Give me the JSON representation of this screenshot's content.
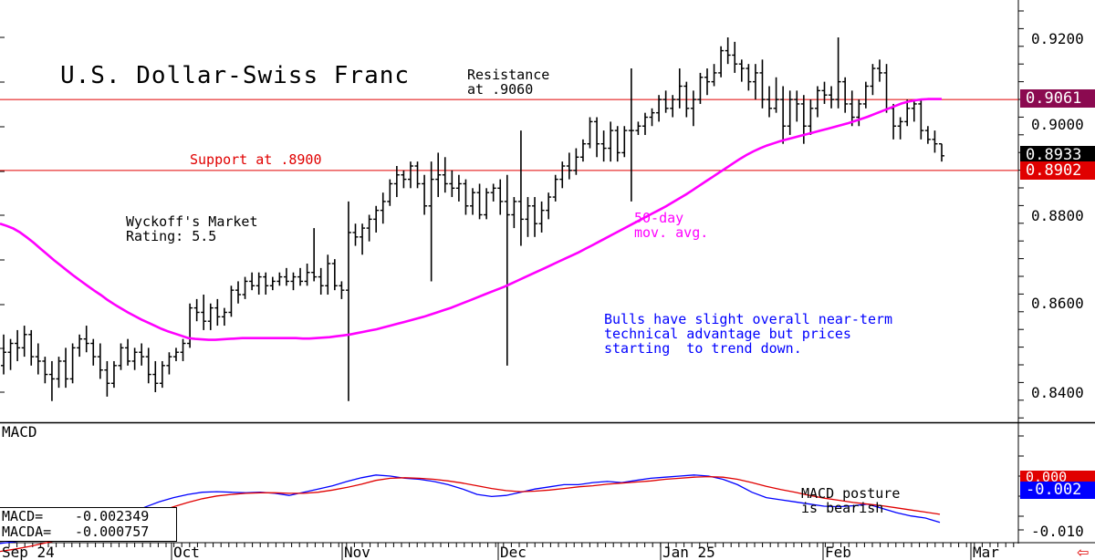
{
  "chart_data": [
    {
      "type": "ohlc",
      "title": "U.S. Dollar-Swiss Franc",
      "y_ticks": [
        "0.9200",
        "0.9000",
        "0.8800",
        "0.8600",
        "0.8400"
      ],
      "ylim": [
        0.837,
        0.928
      ],
      "x_labels": [
        "Sep 24",
        "Oct",
        "Nov",
        "Dec",
        "Jan 25",
        "Feb",
        "Mar"
      ],
      "grid": false,
      "bars": [
        [
          0.846,
          0.853,
          0.844,
          0.849
        ],
        [
          0.849,
          0.852,
          0.845,
          0.851
        ],
        [
          0.851,
          0.854,
          0.847,
          0.85
        ],
        [
          0.85,
          0.855,
          0.848,
          0.853
        ],
        [
          0.853,
          0.854,
          0.846,
          0.848
        ],
        [
          0.848,
          0.851,
          0.844,
          0.847
        ],
        [
          0.847,
          0.848,
          0.842,
          0.844
        ],
        [
          0.844,
          0.847,
          0.838,
          0.843
        ],
        [
          0.843,
          0.848,
          0.841,
          0.847
        ],
        [
          0.847,
          0.85,
          0.841,
          0.843
        ],
        [
          0.843,
          0.851,
          0.842,
          0.85
        ],
        [
          0.85,
          0.853,
          0.848,
          0.852
        ],
        [
          0.852,
          0.855,
          0.849,
          0.851
        ],
        [
          0.851,
          0.852,
          0.846,
          0.848
        ],
        [
          0.848,
          0.851,
          0.843,
          0.845
        ],
        [
          0.845,
          0.847,
          0.839,
          0.842
        ],
        [
          0.842,
          0.847,
          0.841,
          0.846
        ],
        [
          0.846,
          0.851,
          0.845,
          0.85
        ],
        [
          0.85,
          0.852,
          0.846,
          0.847
        ],
        [
          0.847,
          0.85,
          0.845,
          0.849
        ],
        [
          0.849,
          0.851,
          0.846,
          0.848
        ],
        [
          0.848,
          0.85,
          0.842,
          0.844
        ],
        [
          0.844,
          0.847,
          0.84,
          0.842
        ],
        [
          0.842,
          0.847,
          0.841,
          0.846
        ],
        [
          0.846,
          0.849,
          0.844,
          0.848
        ],
        [
          0.848,
          0.85,
          0.847,
          0.849
        ],
        [
          0.849,
          0.852,
          0.847,
          0.851
        ],
        [
          0.851,
          0.86,
          0.85,
          0.859
        ],
        [
          0.859,
          0.861,
          0.856,
          0.858
        ],
        [
          0.858,
          0.862,
          0.854,
          0.856
        ],
        [
          0.856,
          0.86,
          0.854,
          0.859
        ],
        [
          0.859,
          0.861,
          0.855,
          0.857
        ],
        [
          0.857,
          0.859,
          0.855,
          0.858
        ],
        [
          0.858,
          0.864,
          0.857,
          0.863
        ],
        [
          0.863,
          0.865,
          0.86,
          0.862
        ],
        [
          0.862,
          0.866,
          0.861,
          0.865
        ],
        [
          0.865,
          0.867,
          0.863,
          0.864
        ],
        [
          0.864,
          0.867,
          0.862,
          0.866
        ],
        [
          0.866,
          0.867,
          0.862,
          0.864
        ],
        [
          0.864,
          0.866,
          0.863,
          0.865
        ],
        [
          0.865,
          0.867,
          0.864,
          0.866
        ],
        [
          0.866,
          0.868,
          0.864,
          0.865
        ],
        [
          0.865,
          0.867,
          0.863,
          0.866
        ],
        [
          0.866,
          0.868,
          0.864,
          0.865
        ],
        [
          0.865,
          0.869,
          0.864,
          0.867
        ],
        [
          0.867,
          0.877,
          0.865,
          0.866
        ],
        [
          0.866,
          0.868,
          0.862,
          0.864
        ],
        [
          0.864,
          0.871,
          0.862,
          0.869
        ],
        [
          0.869,
          0.87,
          0.863,
          0.864
        ],
        [
          0.864,
          0.865,
          0.861,
          0.863
        ],
        [
          0.863,
          0.883,
          0.838,
          0.876
        ],
        [
          0.876,
          0.878,
          0.873,
          0.875
        ],
        [
          0.875,
          0.878,
          0.871,
          0.877
        ],
        [
          0.877,
          0.88,
          0.874,
          0.879
        ],
        [
          0.879,
          0.882,
          0.876,
          0.881
        ],
        [
          0.881,
          0.885,
          0.878,
          0.883
        ],
        [
          0.883,
          0.888,
          0.882,
          0.887
        ],
        [
          0.887,
          0.891,
          0.884,
          0.889
        ],
        [
          0.889,
          0.89,
          0.886,
          0.888
        ],
        [
          0.888,
          0.892,
          0.886,
          0.891
        ],
        [
          0.891,
          0.892,
          0.886,
          0.887
        ],
        [
          0.887,
          0.889,
          0.88,
          0.882
        ],
        [
          0.882,
          0.892,
          0.865,
          0.888
        ],
        [
          0.888,
          0.894,
          0.884,
          0.889
        ],
        [
          0.889,
          0.893,
          0.885,
          0.887
        ],
        [
          0.887,
          0.89,
          0.884,
          0.886
        ],
        [
          0.886,
          0.889,
          0.883,
          0.887
        ],
        [
          0.887,
          0.888,
          0.88,
          0.882
        ],
        [
          0.882,
          0.886,
          0.88,
          0.885
        ],
        [
          0.885,
          0.887,
          0.879,
          0.88
        ],
        [
          0.88,
          0.886,
          0.879,
          0.885
        ],
        [
          0.885,
          0.887,
          0.883,
          0.886
        ],
        [
          0.886,
          0.888,
          0.88,
          0.883
        ],
        [
          0.883,
          0.889,
          0.846,
          0.88
        ],
        [
          0.88,
          0.884,
          0.877,
          0.883
        ],
        [
          0.883,
          0.899,
          0.873,
          0.879
        ],
        [
          0.879,
          0.884,
          0.875,
          0.882
        ],
        [
          0.882,
          0.884,
          0.875,
          0.878
        ],
        [
          0.878,
          0.883,
          0.876,
          0.881
        ],
        [
          0.881,
          0.885,
          0.879,
          0.884
        ],
        [
          0.884,
          0.889,
          0.883,
          0.888
        ],
        [
          0.888,
          0.892,
          0.886,
          0.891
        ],
        [
          0.891,
          0.894,
          0.888,
          0.89
        ],
        [
          0.89,
          0.895,
          0.889,
          0.893
        ],
        [
          0.893,
          0.897,
          0.892,
          0.896
        ],
        [
          0.896,
          0.902,
          0.895,
          0.901
        ],
        [
          0.901,
          0.902,
          0.893,
          0.896
        ],
        [
          0.896,
          0.899,
          0.892,
          0.895
        ],
        [
          0.895,
          0.901,
          0.892,
          0.899
        ],
        [
          0.899,
          0.9,
          0.892,
          0.894
        ],
        [
          0.894,
          0.9,
          0.893,
          0.899
        ],
        [
          0.899,
          0.913,
          0.883,
          0.899
        ],
        [
          0.899,
          0.901,
          0.898,
          0.9
        ],
        [
          0.9,
          0.903,
          0.898,
          0.902
        ],
        [
          0.902,
          0.904,
          0.9,
          0.903
        ],
        [
          0.903,
          0.907,
          0.901,
          0.906
        ],
        [
          0.906,
          0.908,
          0.903,
          0.904
        ],
        [
          0.904,
          0.907,
          0.902,
          0.906
        ],
        [
          0.906,
          0.913,
          0.904,
          0.909
        ],
        [
          0.909,
          0.91,
          0.902,
          0.904
        ],
        [
          0.904,
          0.908,
          0.9,
          0.906
        ],
        [
          0.906,
          0.912,
          0.905,
          0.911
        ],
        [
          0.911,
          0.913,
          0.907,
          0.91
        ],
        [
          0.91,
          0.914,
          0.909,
          0.912
        ],
        [
          0.912,
          0.918,
          0.911,
          0.917
        ],
        [
          0.917,
          0.92,
          0.914,
          0.916
        ],
        [
          0.916,
          0.919,
          0.912,
          0.914
        ],
        [
          0.914,
          0.915,
          0.91,
          0.913
        ],
        [
          0.913,
          0.914,
          0.908,
          0.91
        ],
        [
          0.91,
          0.914,
          0.906,
          0.912
        ],
        [
          0.912,
          0.915,
          0.904,
          0.906
        ],
        [
          0.906,
          0.909,
          0.902,
          0.904
        ],
        [
          0.904,
          0.911,
          0.903,
          0.906
        ],
        [
          0.906,
          0.909,
          0.896,
          0.9
        ],
        [
          0.9,
          0.908,
          0.898,
          0.906
        ],
        [
          0.906,
          0.908,
          0.901,
          0.905
        ],
        [
          0.905,
          0.907,
          0.896,
          0.9
        ],
        [
          0.9,
          0.906,
          0.898,
          0.904
        ],
        [
          0.904,
          0.909,
          0.902,
          0.908
        ],
        [
          0.908,
          0.91,
          0.905,
          0.907
        ],
        [
          0.907,
          0.909,
          0.904,
          0.906
        ],
        [
          0.906,
          0.92,
          0.904,
          0.91
        ],
        [
          0.91,
          0.911,
          0.903,
          0.905
        ],
        [
          0.905,
          0.908,
          0.9,
          0.902
        ],
        [
          0.902,
          0.906,
          0.9,
          0.905
        ],
        [
          0.905,
          0.91,
          0.904,
          0.909
        ],
        [
          0.909,
          0.914,
          0.907,
          0.913
        ],
        [
          0.913,
          0.915,
          0.91,
          0.912
        ],
        [
          0.912,
          0.914,
          0.903,
          0.904
        ],
        [
          0.904,
          0.905,
          0.897,
          0.9
        ],
        [
          0.9,
          0.902,
          0.897,
          0.901
        ],
        [
          0.901,
          0.906,
          0.9,
          0.904
        ],
        [
          0.904,
          0.906,
          0.901,
          0.905
        ],
        [
          0.905,
          0.906,
          0.897,
          0.899
        ],
        [
          0.899,
          0.9,
          0.896,
          0.897
        ],
        [
          0.897,
          0.899,
          0.894,
          0.896
        ],
        [
          0.896,
          0.896,
          0.892,
          0.8933
        ]
      ],
      "moving_average": {
        "name": "50-day mov. avg.",
        "color": "#ff00ff",
        "values": [
          0.878,
          0.8775,
          0.8769,
          0.876,
          0.8749,
          0.8737,
          0.8724,
          0.8711,
          0.8698,
          0.8686,
          0.8674,
          0.8662,
          0.8651,
          0.864,
          0.8629,
          0.8619,
          0.8608,
          0.8598,
          0.8589,
          0.858,
          0.8572,
          0.8564,
          0.8557,
          0.855,
          0.8543,
          0.8537,
          0.8532,
          0.8527,
          0.8522,
          0.852,
          0.8519,
          0.8518,
          0.8518,
          0.8519,
          0.852,
          0.8521,
          0.8522,
          0.8522,
          0.8522,
          0.8522,
          0.8522,
          0.8522,
          0.8522,
          0.8522,
          0.8522,
          0.8521,
          0.8521,
          0.8522,
          0.8523,
          0.8524,
          0.8526,
          0.8528,
          0.853,
          0.8533,
          0.8536,
          0.8539,
          0.8542,
          0.8546,
          0.855,
          0.8554,
          0.8558,
          0.8562,
          0.8566,
          0.857,
          0.8575,
          0.858,
          0.8585,
          0.859,
          0.8596,
          0.8602,
          0.8608,
          0.8614,
          0.862,
          0.8626,
          0.8632,
          0.8638,
          0.8645,
          0.8652,
          0.8659,
          0.8666,
          0.8673,
          0.868,
          0.8687,
          0.8694,
          0.8701,
          0.8708,
          0.8715,
          0.8723,
          0.8731,
          0.8739,
          0.8747,
          0.8755,
          0.8763,
          0.8771,
          0.8779,
          0.8787,
          0.8795,
          0.8803,
          0.8811,
          0.8819,
          0.8828,
          0.8837,
          0.8846,
          0.8856,
          0.8866,
          0.8876,
          0.8886,
          0.8896,
          0.8906,
          0.8916,
          0.8926,
          0.8935,
          0.8943,
          0.895,
          0.8956,
          0.8961,
          0.8966,
          0.897,
          0.8974,
          0.8978,
          0.8982,
          0.8986,
          0.899,
          0.8994,
          0.8998,
          0.9002,
          0.9006,
          0.9011,
          0.9016,
          0.9021,
          0.9027,
          0.9033,
          0.9039,
          0.9045,
          0.9051,
          0.9055,
          0.9058,
          0.906,
          0.9061,
          0.9061,
          0.9061
        ]
      },
      "horizontal_lines": [
        {
          "label": "Resistance\nat .9060",
          "value": 0.906,
          "color": "#e00000"
        },
        {
          "label": "Support at .8900",
          "value": 0.89,
          "color": "#e00000"
        }
      ],
      "price_tags": [
        {
          "text": "0.9061",
          "color": "#8b0a50"
        },
        {
          "text": "0.8933",
          "color": "#000000"
        },
        {
          "text": "0.8902",
          "color": "#e00000"
        }
      ],
      "annotations": {
        "rating": "Wyckoff's Market\nRating: 5.5",
        "ma_label": "50-day\nmov. avg.",
        "comment": "Bulls have slight overall near-term\ntechnical advantage but prices\nstarting  to trend down."
      }
    },
    {
      "type": "line",
      "title": "MACD",
      "y_ticks": [
        "-0.010"
      ],
      "ylim": [
        -0.014,
        0.006
      ],
      "series": [
        {
          "name": "MACD",
          "color": "#0000ff",
          "values": [
            -0.0125,
            -0.0122,
            -0.0118,
            -0.0112,
            -0.0106,
            -0.01,
            -0.0094,
            -0.0088,
            -0.008,
            -0.007,
            -0.0058,
            -0.0048,
            -0.004,
            -0.0034,
            -0.003,
            -0.0029,
            -0.003,
            -0.0031,
            -0.003,
            -0.0032,
            -0.0036,
            -0.003,
            -0.0024,
            -0.0018,
            -0.001,
            -0.0003,
            0.0002,
            0.0,
            -0.0004,
            -0.0006,
            -0.001,
            -0.0016,
            -0.0024,
            -0.0034,
            -0.0038,
            -0.0036,
            -0.003,
            -0.0024,
            -0.002,
            -0.0016,
            -0.0016,
            -0.0012,
            -0.001,
            -0.0012,
            -0.0008,
            -0.0004,
            -0.0002,
            0.0,
            0.0002,
            0.0,
            -0.0006,
            -0.0016,
            -0.003,
            -0.004,
            -0.0044,
            -0.0048,
            -0.0052,
            -0.0056,
            -0.0057,
            -0.0055,
            -0.0052,
            -0.006,
            -0.0068,
            -0.0074,
            -0.0078,
            -0.0086
          ]
        },
        {
          "name": "MACDA",
          "color": "#e00000",
          "values": [
            -0.014,
            -0.0136,
            -0.0131,
            -0.0125,
            -0.0119,
            -0.0113,
            -0.0107,
            -0.01,
            -0.0092,
            -0.0084,
            -0.0076,
            -0.0066,
            -0.0057,
            -0.0049,
            -0.0042,
            -0.0037,
            -0.0034,
            -0.0032,
            -0.0031,
            -0.0031,
            -0.0032,
            -0.0032,
            -0.003,
            -0.0026,
            -0.0021,
            -0.0015,
            -0.0008,
            -0.0004,
            -0.0003,
            -0.0004,
            -0.0006,
            -0.0009,
            -0.0013,
            -0.0018,
            -0.0023,
            -0.0027,
            -0.0029,
            -0.0028,
            -0.0026,
            -0.0023,
            -0.002,
            -0.0018,
            -0.0015,
            -0.0013,
            -0.0011,
            -0.0009,
            -0.0006,
            -0.0004,
            -0.0002,
            -0.0001,
            -0.0002,
            -0.0006,
            -0.0012,
            -0.0019,
            -0.0025,
            -0.003,
            -0.0036,
            -0.0041,
            -0.0045,
            -0.0049,
            -0.0052,
            -0.0055,
            -0.0059,
            -0.0063,
            -0.0067,
            -0.0071
          ]
        }
      ],
      "readouts": [
        {
          "label": "MACD=",
          "value": "-0.002349"
        },
        {
          "label": "MACDA=",
          "value": "-0.000757"
        }
      ],
      "price_tags": [
        {
          "text": "0.000",
          "color": "#e00000"
        },
        {
          "text": "-0.002",
          "color": "#0000ff"
        }
      ],
      "annotation": "MACD posture\nis bearish"
    }
  ]
}
